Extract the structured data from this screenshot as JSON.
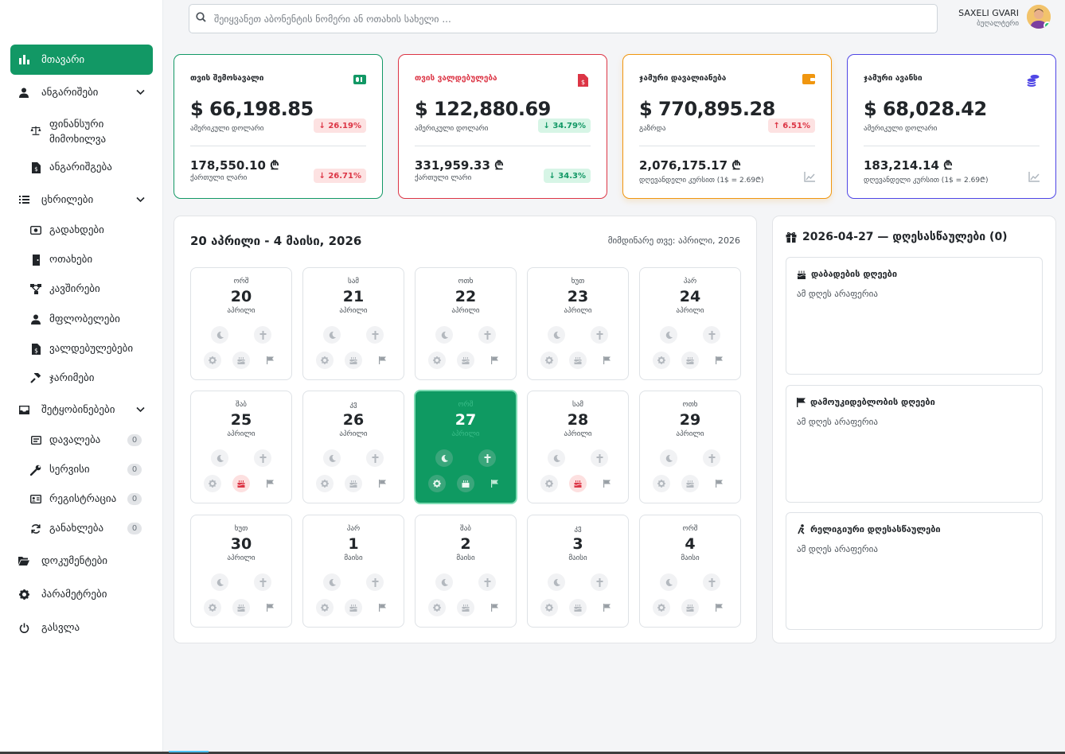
{
  "header": {
    "search_placeholder": "შეიყვანეთ აბონენტის ნომერი ან ოთახის სახელი ...",
    "user_name": "SAXELI GVARI",
    "user_role": "ბუღალტერი"
  },
  "sidebar": {
    "main": "მთავარი",
    "reports": "ანგარიშები",
    "financial_review": "ფინანსური მიმოხილვა",
    "invoices": "ანგარიშგება",
    "tables": "ცხრილები",
    "payments": "გადახდები",
    "rooms": "ოთახები",
    "connections": "კავშირები",
    "owners": "მფლობელები",
    "debts": "ვალდებულებები",
    "fines": "ჯარიმები",
    "notifications": "შეტყობინებები",
    "tasks": "დავალება",
    "tasks_count": "0",
    "service": "სერვისი",
    "service_count": "0",
    "registration": "რეგისტრაცია",
    "registration_count": "0",
    "update": "განახლება",
    "update_count": "0",
    "documents": "დოკუმენტები",
    "settings": "პარამეტრები",
    "logout": "გასვლა"
  },
  "cards": [
    {
      "title": "თვის შემოსავალი",
      "value": "$ 66,198.85",
      "value_label": "ამერიკული დოლარი",
      "change1": "↓ 26.19%",
      "value2": "178,550.10 ₾",
      "value2_label": "ქართული ლარი",
      "change2": "↓ 26.71%",
      "color": "#129865"
    },
    {
      "title": "თვის ვალდებულება",
      "value": "$ 122,880.69",
      "value_label": "ამერიკული დოლარი",
      "change1": "↓ 34.79%",
      "value2": "331,959.33 ₾",
      "value2_label": "ქართული ლარი",
      "change2": "↓ 34.3%",
      "color": "#dc3545"
    },
    {
      "title": "ჯამური დავალიანება",
      "value": "$ 770,895.28",
      "value_label": "გაზრდა",
      "change1": "↑ 6.51%",
      "value2": "2,076,175.17 ₾",
      "value2_label": "დღევანდელი კურსით (1$ = 2.69₾)",
      "color": "#f0960f"
    },
    {
      "title": "ჯამური ავანსი",
      "value": "$ 68,028.42",
      "value_label": "ამერიკული დოლარი",
      "value2": "183,214.14 ₾",
      "value2_label": "დღევანდელი კურსით (1$ = 2.69₾)",
      "color": "#4f46e5"
    }
  ],
  "calendar": {
    "title": "20 აპრილი - 4 მაისი, 2026",
    "current_week": "მიმდინარე თვე: აპრილი, 2026",
    "days": [
      {
        "wd": "ორშ",
        "num": "20",
        "mo": "აპრილი"
      },
      {
        "wd": "სამ",
        "num": "21",
        "mo": "აპრილი"
      },
      {
        "wd": "ოთხ",
        "num": "22",
        "mo": "აპრილი"
      },
      {
        "wd": "ხუთ",
        "num": "23",
        "mo": "აპრილი"
      },
      {
        "wd": "პარ",
        "num": "24",
        "mo": "აპრილი"
      },
      {
        "wd": "შაბ",
        "num": "25",
        "mo": "აპრილი"
      },
      {
        "wd": "კვ",
        "num": "26",
        "mo": "აპრილი"
      },
      {
        "wd": "ორშ",
        "num": "27",
        "mo": "აპრილი"
      },
      {
        "wd": "სამ",
        "num": "28",
        "mo": "აპრილი"
      },
      {
        "wd": "ოთხ",
        "num": "29",
        "mo": "აპრილი"
      },
      {
        "wd": "ხუთ",
        "num": "30",
        "mo": "აპრილი"
      },
      {
        "wd": "პარ",
        "num": "1",
        "mo": "მაისი"
      },
      {
        "wd": "შაბ",
        "num": "2",
        "mo": "მაისი"
      },
      {
        "wd": "კვ",
        "num": "3",
        "mo": "მაისი"
      },
      {
        "wd": "ორშ",
        "num": "4",
        "mo": "მაისი"
      }
    ]
  },
  "holidays": {
    "title": "2026-04-27 — დღესასწაულები (0)",
    "birthdays": "დაბადების დღეები",
    "independence": "დამოუკიდებლობის დღეები",
    "religious": "რელიგიური დღესასწაულები",
    "empty": "ამ დღეს არაფერია"
  }
}
